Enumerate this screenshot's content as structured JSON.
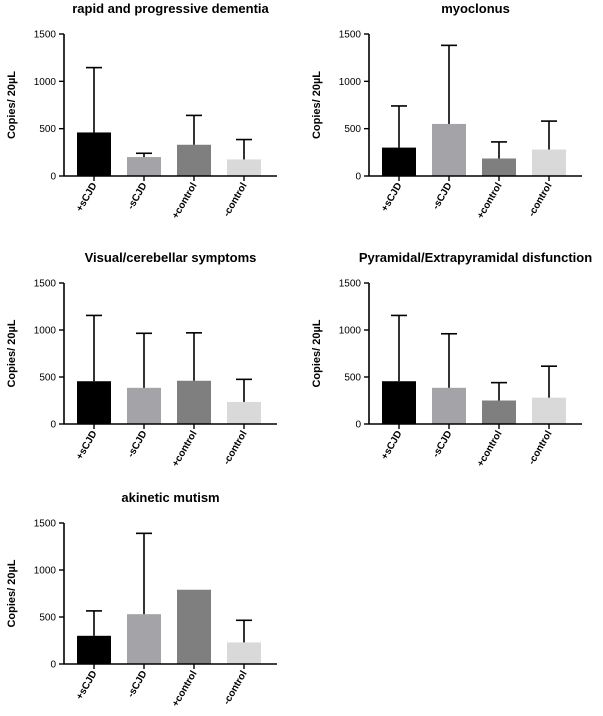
{
  "chart_data": [
    {
      "type": "bar",
      "title": "rapid and progressive dementia",
      "ylabel": "Copies/ 20µL",
      "ylim": [
        0,
        1500
      ],
      "yticks": [
        0,
        500,
        1000,
        1500
      ],
      "categories": [
        "+sCJD",
        "-sCJD",
        "+control",
        "-control"
      ],
      "values": [
        460,
        200,
        330,
        175
      ],
      "errors": [
        1145,
        240,
        640,
        385
      ]
    },
    {
      "type": "bar",
      "title": "myoclonus",
      "ylabel": "Copies/ 20µL",
      "ylim": [
        0,
        1500
      ],
      "yticks": [
        0,
        500,
        1000,
        1500
      ],
      "categories": [
        "+sCJD",
        "-sCJD",
        "+control",
        "-control"
      ],
      "values": [
        300,
        550,
        185,
        280
      ],
      "errors": [
        740,
        1380,
        360,
        580
      ]
    },
    {
      "type": "bar",
      "title": "Visual/cerebellar symptoms",
      "ylabel": "Copies/ 20µL",
      "ylim": [
        0,
        1500
      ],
      "yticks": [
        0,
        500,
        1000,
        1500
      ],
      "categories": [
        "+sCJD",
        "-sCJD",
        "+control",
        "-control"
      ],
      "values": [
        455,
        385,
        460,
        235
      ],
      "errors": [
        1155,
        965,
        970,
        475
      ]
    },
    {
      "type": "bar",
      "title": "Pyramidal/Extrapyramidal disfunction",
      "ylabel": "Copies/ 20µL",
      "ylim": [
        0,
        1500
      ],
      "yticks": [
        0,
        500,
        1000,
        1500
      ],
      "categories": [
        "+sCJD",
        "-sCJD",
        "+control",
        "-control"
      ],
      "values": [
        455,
        385,
        250,
        280
      ],
      "errors": [
        1155,
        960,
        440,
        615
      ]
    },
    {
      "type": "bar",
      "title": "akinetic mutism",
      "ylabel": "Copies/ 20µL",
      "ylim": [
        0,
        1500
      ],
      "yticks": [
        0,
        500,
        1000,
        1500
      ],
      "categories": [
        "+sCJD",
        "-sCJD",
        "+control",
        "-control"
      ],
      "values": [
        300,
        530,
        790,
        230
      ],
      "errors": [
        565,
        1390,
        790,
        465
      ]
    }
  ],
  "colors": [
    "#000000",
    "#a4a3a8",
    "#7f7f7f",
    "#d9d9d9"
  ]
}
